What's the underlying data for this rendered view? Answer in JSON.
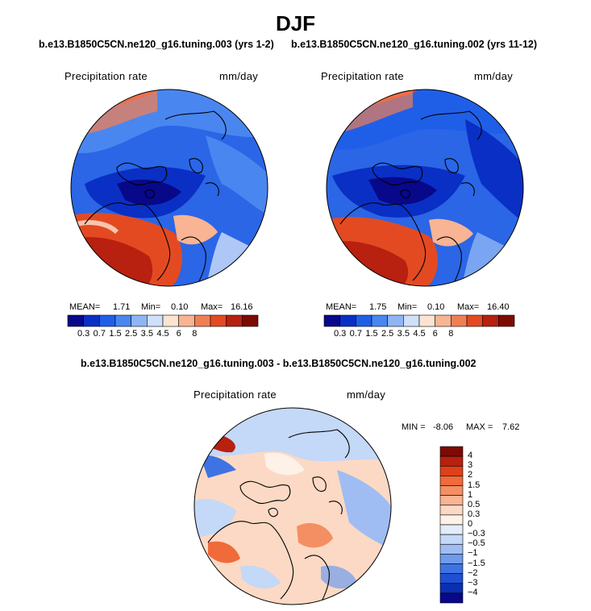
{
  "chart_data": [
    {
      "type": "heatmap",
      "projection": "north-polar-stereographic",
      "title": "b.e13.B1850C5CN.ne120_g16.tuning.003 (yrs 1-2)",
      "variable": "Precipitation rate",
      "units": "mm/day",
      "stats": {
        "mean_label": "MEAN=",
        "mean": "1.71",
        "min_label": "Min=",
        "min": "0.10",
        "max_label": "Max=",
        "max": "16.16"
      },
      "levels": [
        "0.3",
        "0.7",
        "1.5",
        "2.5",
        "3.5",
        "4.5",
        "6",
        "8"
      ]
    },
    {
      "type": "heatmap",
      "projection": "north-polar-stereographic",
      "title": "b.e13.B1850C5CN.ne120_g16.tuning.002 (yrs 11-12)",
      "variable": "Precipitation rate",
      "units": "mm/day",
      "stats": {
        "mean_label": "MEAN=",
        "mean": "1.75",
        "min_label": "Min=",
        "min": "0.10",
        "max_label": "Max=",
        "max": "16.40"
      },
      "levels": [
        "0.3",
        "0.7",
        "1.5",
        "2.5",
        "3.5",
        "4.5",
        "6",
        "8"
      ]
    },
    {
      "type": "heatmap",
      "projection": "north-polar-stereographic",
      "title": "b.e13.B1850C5CN.ne120_g16.tuning.003 - b.e13.B1850C5CN.ne120_g16.tuning.002",
      "variable": "Precipitation rate",
      "units": "mm/day",
      "stats": {
        "min_label": "MIN =",
        "min": "-8.06",
        "max_label": "MAX =",
        "max": "7.62"
      },
      "levels": [
        "4",
        "3",
        "2",
        "1.5",
        "1",
        "0.5",
        "0.3",
        "0",
        "−0.3",
        "−0.5",
        "−1",
        "−1.5",
        "−2",
        "−3",
        "−4"
      ]
    }
  ],
  "page": {
    "title": "DJF"
  },
  "colors": {
    "abs_scale": [
      "#08088a",
      "#0a2fc4",
      "#1f5fe8",
      "#4a86f0",
      "#8fb5f5",
      "#cfe0fb",
      "#fde3d2",
      "#f8b493",
      "#f07f55",
      "#e34a22",
      "#b8200f",
      "#7d0a05"
    ],
    "diff_scale": [
      "#7d0a05",
      "#b8200f",
      "#e0401a",
      "#f06a3a",
      "#f48f63",
      "#f8b493",
      "#fcd9c4",
      "#fdf1e8",
      "#e3ecfb",
      "#c4d8f7",
      "#9fbdf3",
      "#6f9bee",
      "#3f73e3",
      "#1f4fd3",
      "#0a2fb0",
      "#08088a"
    ]
  }
}
